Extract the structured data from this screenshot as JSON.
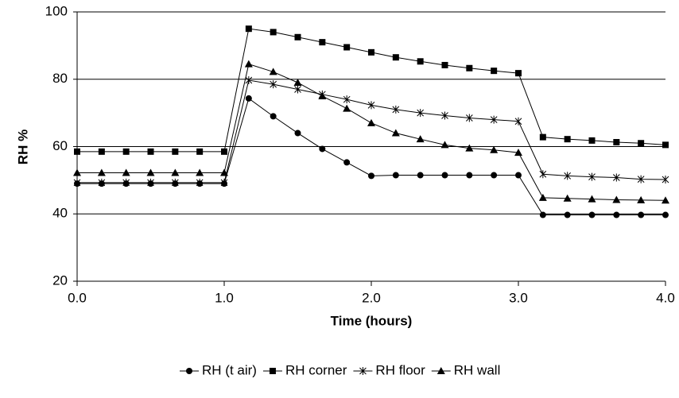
{
  "chart_data": {
    "type": "line",
    "xlabel": "Time (hours)",
    "ylabel": "RH %",
    "x": [
      0,
      0.1667,
      0.3333,
      0.5,
      0.6667,
      0.8333,
      1,
      1.1667,
      1.3333,
      1.5,
      1.6667,
      1.8333,
      2,
      2.1667,
      2.3333,
      2.5,
      2.6667,
      2.8333,
      3,
      3.1667,
      3.3333,
      3.5,
      3.6667,
      3.8333,
      4
    ],
    "series": [
      {
        "name": "RH (t air)",
        "color": "#000000",
        "marker": "circle",
        "values": [
          49,
          49,
          49,
          49,
          49,
          49,
          49,
          74.3,
          69,
          64,
          59.3,
          55.3,
          51.3,
          51.5,
          51.5,
          51.5,
          51.5,
          51.5,
          51.5,
          39.7,
          39.7,
          39.7,
          39.7,
          39.7,
          39.7
        ]
      },
      {
        "name": "RH corner",
        "color": "#000000",
        "marker": "square",
        "values": [
          58.5,
          58.5,
          58.5,
          58.5,
          58.5,
          58.5,
          58.5,
          95,
          94,
          92.5,
          91,
          89.5,
          88,
          86.5,
          85.3,
          84.2,
          83.3,
          82.5,
          81.8,
          62.8,
          62.2,
          61.8,
          61.3,
          61,
          60.5
        ]
      },
      {
        "name": "RH floor",
        "color": "#000000",
        "marker": "star",
        "values": [
          49.3,
          49.3,
          49.3,
          49.3,
          49.3,
          49.3,
          49.3,
          79.7,
          78.5,
          77,
          75.5,
          74,
          72.3,
          71,
          70,
          69.2,
          68.5,
          68,
          67.5,
          51.8,
          51.3,
          51,
          50.8,
          50.3,
          50.2
        ]
      },
      {
        "name": "RH wall",
        "color": "#000000",
        "marker": "triangle",
        "values": [
          52.2,
          52.2,
          52.2,
          52.2,
          52.2,
          52.2,
          52.2,
          84.5,
          82.2,
          79,
          75,
          71.3,
          67,
          64,
          62.2,
          60.5,
          59.5,
          59,
          58.2,
          44.8,
          44.6,
          44.4,
          44.2,
          44.1,
          44
        ]
      }
    ],
    "xlim": [
      0,
      4
    ],
    "xticks": [
      {
        "value": 0,
        "label": "0.0"
      },
      {
        "value": 1,
        "label": "1.0"
      },
      {
        "value": 2,
        "label": "2.0"
      },
      {
        "value": 3,
        "label": "3.0"
      },
      {
        "value": 4,
        "label": "4.0"
      }
    ],
    "ylim": [
      20,
      100
    ],
    "yticks": [
      20,
      40,
      60,
      80,
      100
    ],
    "grid": true,
    "legend": "bottom"
  }
}
